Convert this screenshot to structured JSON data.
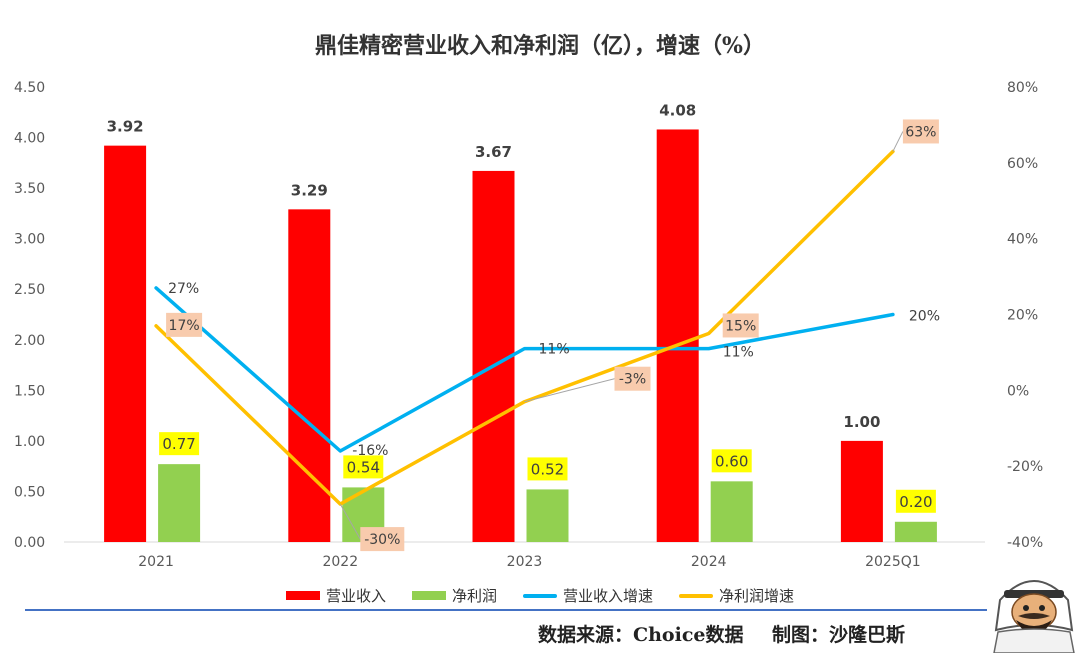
{
  "chart_data": {
    "type": "bar",
    "title": "鼎佳精密营业收入和净利润（亿），增速（%）",
    "categories": [
      "2021",
      "2022",
      "2023",
      "2024",
      "2025Q1"
    ],
    "series": [
      {
        "name": "营业收入",
        "kind": "bar",
        "axis": "left",
        "color": "#ff0000",
        "values": [
          3.92,
          3.29,
          3.67,
          4.08,
          1.0
        ],
        "labels": [
          "3.92",
          "3.29",
          "3.67",
          "4.08",
          "1.00"
        ]
      },
      {
        "name": "净利润",
        "kind": "bar",
        "axis": "left",
        "color": "#92d050",
        "values": [
          0.77,
          0.54,
          0.52,
          0.6,
          0.2
        ],
        "labels": [
          "0.77",
          "0.54",
          "0.52",
          "0.60",
          "0.20"
        ]
      },
      {
        "name": "营业收入增速",
        "kind": "line",
        "axis": "right",
        "color": "#00b0f0",
        "values": [
          27,
          -16,
          11,
          11,
          20
        ],
        "labels": [
          "27%",
          "-16%",
          "11%",
          "11%",
          "20%"
        ]
      },
      {
        "name": "净利润增速",
        "kind": "line",
        "axis": "right",
        "color": "#ffc000",
        "values": [
          17,
          -30,
          -3,
          15,
          63
        ],
        "labels": [
          "17%",
          "-30%",
          "-3%",
          "15%",
          "63%"
        ]
      }
    ],
    "y_left": {
      "range": [
        0,
        4.5
      ],
      "ticks": [
        "0.00",
        "0.50",
        "1.00",
        "1.50",
        "2.00",
        "2.50",
        "3.00",
        "3.50",
        "4.00",
        "4.50"
      ]
    },
    "y_right": {
      "range": [
        -40,
        80
      ],
      "ticks": [
        "-40%",
        "-20%",
        "0%",
        "20%",
        "40%",
        "60%",
        "80%"
      ]
    },
    "grid": false,
    "legend_position": "bottom",
    "label_colors": {
      "net_profit_label_bg": "#ffff00",
      "profit_growth_label_bg": "#f8cbad"
    }
  },
  "footer": {
    "source": "数据来源：Choice数据",
    "author": "制图：沙隆巴斯"
  },
  "mascot_icon": "bearded-man-keffiyeh-icon"
}
